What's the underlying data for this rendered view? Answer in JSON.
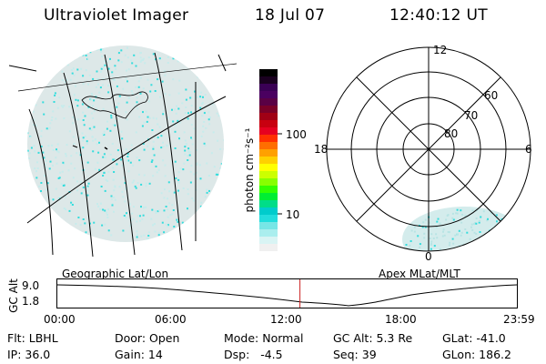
{
  "header": {
    "instrument": "Ultraviolet Imager",
    "date": "18 Jul 07",
    "time": "12:40:12 UT"
  },
  "colorbar": {
    "label": "photon cm⁻²s⁻¹",
    "ticks": [
      "100",
      "10"
    ],
    "colors": [
      "#000000",
      "#1a0020",
      "#3a0055",
      "#4a0060",
      "#5a0045",
      "#7a0028",
      "#a00015",
      "#c80010",
      "#e60020",
      "#ff3000",
      "#ff6e00",
      "#ffa000",
      "#ffd000",
      "#ffff00",
      "#ccff00",
      "#88ff00",
      "#33ff00",
      "#00ee33",
      "#00dd88",
      "#00cccc",
      "#22dddd",
      "#77e6e6",
      "#aaeeee",
      "#d9f4f4",
      "#f0f0f0"
    ]
  },
  "polar_plot": {
    "lat_labels": [
      "80",
      "70",
      "60"
    ],
    "mlt_labels": {
      "top": "12",
      "left": "18",
      "right": "6",
      "bottom": "0"
    }
  },
  "timeline": {
    "left_title": "Geographic Lat/Lon",
    "right_title": "Apex MLat/MLT",
    "axis_label": "GC Alt",
    "y_ticks": [
      "9.0",
      "1.8"
    ],
    "x_ticks": [
      "00:00",
      "06:00",
      "12:00",
      "18:00",
      "23:59"
    ],
    "marker_time_hours": 12.67
  },
  "info": {
    "flt": "Flt: LBHL",
    "ip": "IP: 36.0",
    "door": "Door: Open",
    "gain": "Gain: 14",
    "mode": "Mode: Normal",
    "dsp": "Dsp:   -4.5",
    "gc_alt": "GC Alt: 5.3 Re",
    "seq": "Seq: 39",
    "glat": "GLat: -41.0",
    "glon": "GLon: 186.2"
  },
  "colors": {
    "marker": "#cc2222",
    "aurora_cyan": "#33dddd",
    "aurora_light": "#c6ecec"
  }
}
